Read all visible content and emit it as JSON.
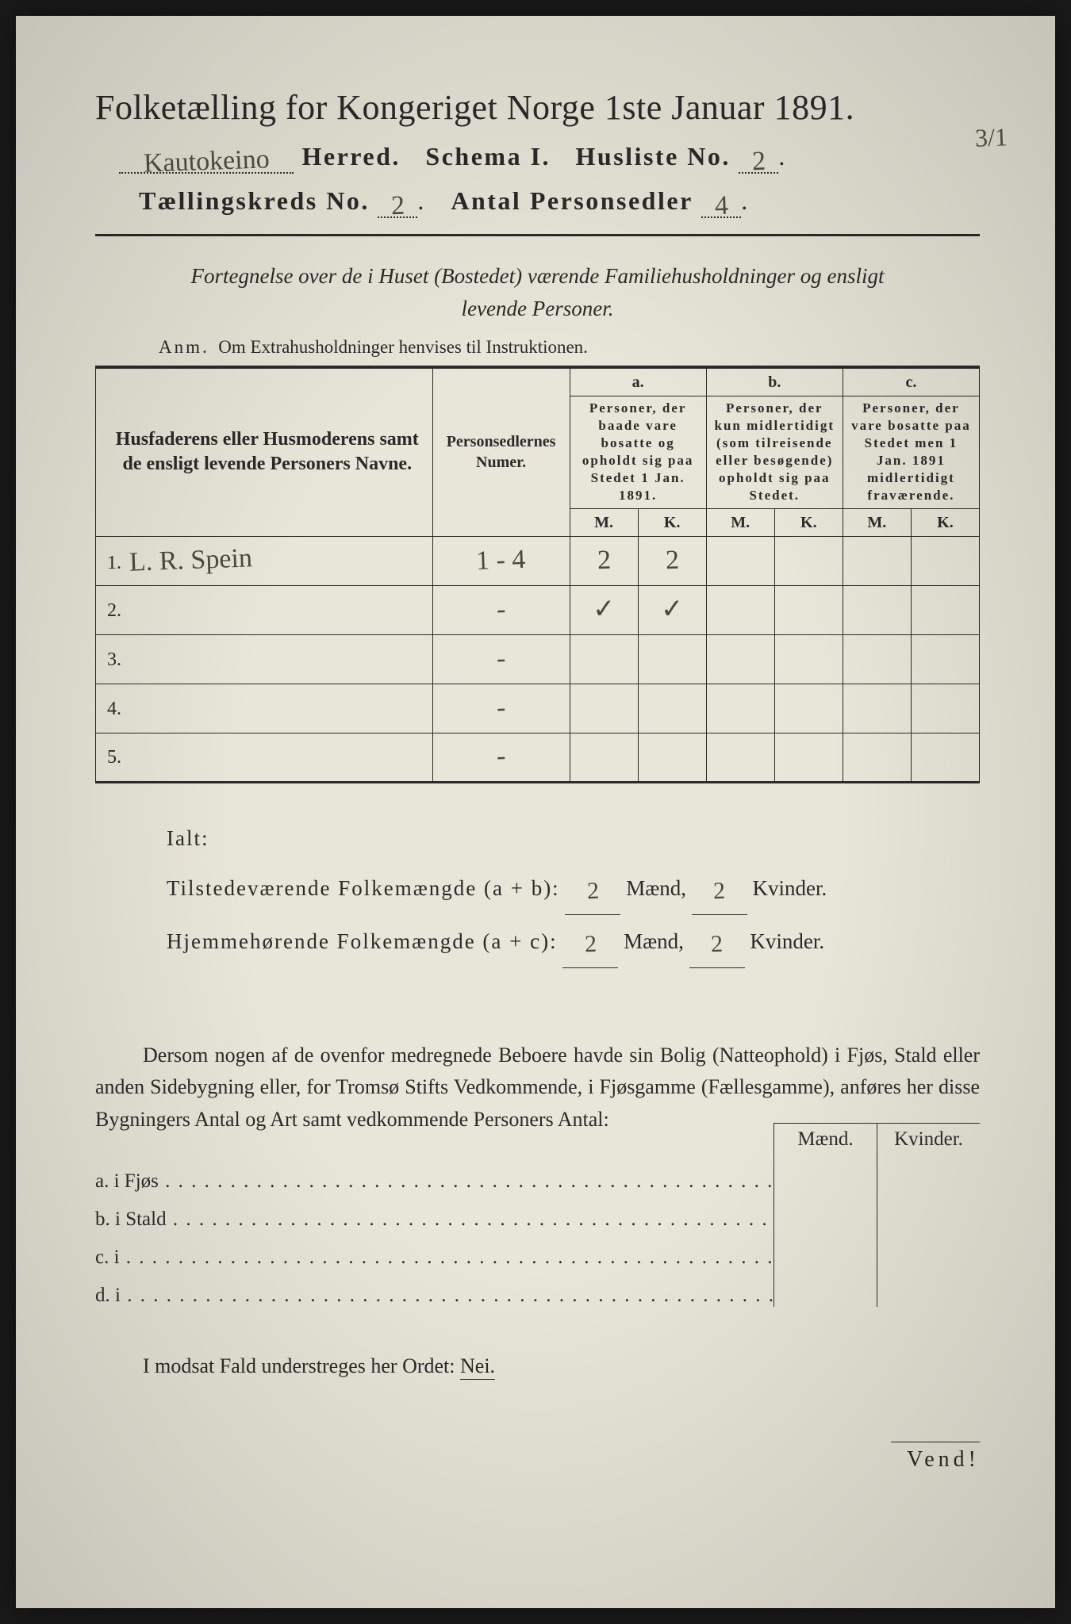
{
  "header": {
    "title_prefix": "Folketælling for Kongeriget Norge 1ste Januar",
    "year": "1891.",
    "herred_value": "Kautokeino",
    "herred_label": "Herred.",
    "schema_label": "Schema I.",
    "husliste_label": "Husliste No.",
    "husliste_value": "2",
    "page_annotation": "3/1",
    "kreds_label": "Tællingskreds No.",
    "kreds_value": "2",
    "antal_label": "Antal Personsedler",
    "antal_value": "4"
  },
  "subtitle": {
    "line1": "Fortegnelse over de i Huset (Bostedet) værende Familiehusholdninger og ensligt",
    "line2": "levende Personer."
  },
  "anm": {
    "prefix": "Anm.",
    "text": "Om Extrahusholdninger henvises til Instruktionen."
  },
  "table": {
    "col_name": "Husfaderens eller Husmoderens samt de ensligt levende Personers Navne.",
    "col_num": "Personsedlernes Numer.",
    "col_a_label": "a.",
    "col_a_text": "Personer, der baade vare bosatte og opholdt sig paa Stedet 1 Jan. 1891.",
    "col_b_label": "b.",
    "col_b_text": "Personer, der kun midlertidigt (som tilreisende eller besøgende) opholdt sig paa Stedet.",
    "col_c_label": "c.",
    "col_c_text": "Personer, der vare bosatte paa Stedet men 1 Jan. 1891 midlertidigt fraværende.",
    "mk_m": "M.",
    "mk_k": "K.",
    "rows": [
      {
        "n": "1.",
        "name": "L. R. Spein",
        "num": "1 - 4",
        "a_m": "2",
        "a_k": "2",
        "b_m": "",
        "b_k": "",
        "c_m": "",
        "c_k": ""
      },
      {
        "n": "2.",
        "name": "",
        "num": "-",
        "a_m": "✓",
        "a_k": "✓",
        "b_m": "",
        "b_k": "",
        "c_m": "",
        "c_k": ""
      },
      {
        "n": "3.",
        "name": "",
        "num": "-",
        "a_m": "",
        "a_k": "",
        "b_m": "",
        "b_k": "",
        "c_m": "",
        "c_k": ""
      },
      {
        "n": "4.",
        "name": "",
        "num": "-",
        "a_m": "",
        "a_k": "",
        "b_m": "",
        "b_k": "",
        "c_m": "",
        "c_k": ""
      },
      {
        "n": "5.",
        "name": "",
        "num": "-",
        "a_m": "",
        "a_k": "",
        "b_m": "",
        "b_k": "",
        "c_m": "",
        "c_k": ""
      }
    ]
  },
  "totals": {
    "ialt_label": "Ialt:",
    "present_label": "Tilstedeværende Folkemængde (a + b):",
    "resident_label": "Hjemmehørende Folkemængde (a + c):",
    "maend": "Mænd,",
    "kvinder": "Kvinder.",
    "present_m": "2",
    "present_k": "2",
    "resident_m": "2",
    "resident_k": "2"
  },
  "dersom": {
    "text": "Dersom nogen af de ovenfor medregnede Beboere havde sin Bolig (Natteophold) i Fjøs, Stald eller anden Sidebygning eller, for Tromsø Stifts Vedkommende, i Fjøsgamme (Fællesgamme), anføres her disse Bygningers Antal og Art samt vedkommende Personers Antal:"
  },
  "bottom": {
    "maend": "Mænd.",
    "kvinder": "Kvinder.",
    "rows": [
      {
        "label": "a.  i      Fjøs"
      },
      {
        "label": "b.  i      Stald"
      },
      {
        "label": "c.  i"
      },
      {
        "label": "d.  i"
      }
    ]
  },
  "modsat": {
    "text_pre": "I modsat Fald understreges her Ordet: ",
    "nei": "Nei."
  },
  "vend": "Vend!"
}
